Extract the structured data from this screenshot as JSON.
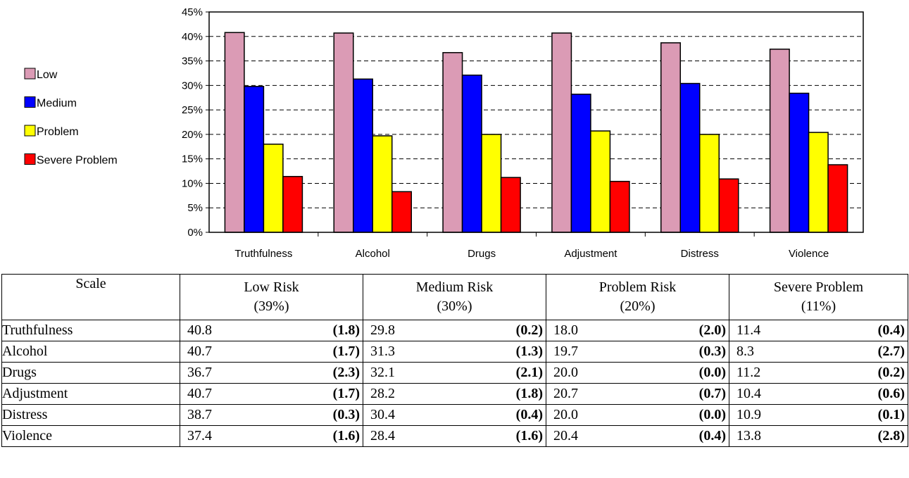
{
  "chart_data": {
    "type": "bar",
    "categories": [
      "Truthfulness",
      "Alcohol",
      "Drugs",
      "Adjustment",
      "Distress",
      "Violence"
    ],
    "series": [
      {
        "name": "Low",
        "color": "#db9bb5",
        "values": [
          40.8,
          40.7,
          36.7,
          40.7,
          38.7,
          37.4
        ]
      },
      {
        "name": "Medium",
        "color": "#0000ff",
        "values": [
          29.8,
          31.3,
          32.1,
          28.2,
          30.4,
          28.4
        ]
      },
      {
        "name": "Problem",
        "color": "#ffff00",
        "values": [
          18.0,
          19.7,
          20.0,
          20.7,
          20.0,
          20.4
        ]
      },
      {
        "name": "Severe Problem",
        "color": "#ff0000",
        "values": [
          11.4,
          8.3,
          11.2,
          10.4,
          10.9,
          13.8
        ]
      }
    ],
    "ylim": [
      0,
      45
    ],
    "yticks": [
      "0%",
      "5%",
      "10%",
      "15%",
      "20%",
      "25%",
      "30%",
      "35%",
      "40%",
      "45%"
    ],
    "grid": "dashed horizontal",
    "legend": "left"
  },
  "table": {
    "headers": [
      {
        "line1": "Scale",
        "line2": ""
      },
      {
        "line1": "Low Risk",
        "line2": "(39%)"
      },
      {
        "line1": "Medium Risk",
        "line2": "(30%)"
      },
      {
        "line1": "Problem Risk",
        "line2": "(20%)"
      },
      {
        "line1": "Severe Problem",
        "line2": "(11%)"
      }
    ],
    "rows": [
      {
        "scale": "Truthfulness",
        "cells": [
          {
            "v": "40.8",
            "d": "(1.8)"
          },
          {
            "v": "29.8",
            "d": "(0.2)"
          },
          {
            "v": "18.0",
            "d": "(2.0)"
          },
          {
            "v": "11.4",
            "d": "(0.4)"
          }
        ]
      },
      {
        "scale": "Alcohol",
        "cells": [
          {
            "v": "40.7",
            "d": "(1.7)"
          },
          {
            "v": "31.3",
            "d": "(1.3)"
          },
          {
            "v": "19.7",
            "d": "(0.3)"
          },
          {
            "v": "8.3",
            "d": "(2.7)"
          }
        ]
      },
      {
        "scale": "Drugs",
        "cells": [
          {
            "v": "36.7",
            "d": "(2.3)"
          },
          {
            "v": "32.1",
            "d": "(2.1)"
          },
          {
            "v": "20.0",
            "d": "(0.0)"
          },
          {
            "v": "11.2",
            "d": "(0.2)"
          }
        ]
      },
      {
        "scale": "Adjustment",
        "cells": [
          {
            "v": "40.7",
            "d": "(1.7)"
          },
          {
            "v": "28.2",
            "d": "(1.8)"
          },
          {
            "v": "20.7",
            "d": "(0.7)"
          },
          {
            "v": "10.4",
            "d": "(0.6)"
          }
        ]
      },
      {
        "scale": "Distress",
        "cells": [
          {
            "v": "38.7",
            "d": "(0.3)"
          },
          {
            "v": "30.4",
            "d": "(0.4)"
          },
          {
            "v": "20.0",
            "d": "(0.0)"
          },
          {
            "v": "10.9",
            "d": "(0.1)"
          }
        ]
      },
      {
        "scale": "Violence",
        "cells": [
          {
            "v": "37.4",
            "d": "(1.6)"
          },
          {
            "v": "28.4",
            "d": "(1.6)"
          },
          {
            "v": "20.4",
            "d": "(0.4)"
          },
          {
            "v": "13.8",
            "d": "(2.8)"
          }
        ]
      }
    ]
  }
}
